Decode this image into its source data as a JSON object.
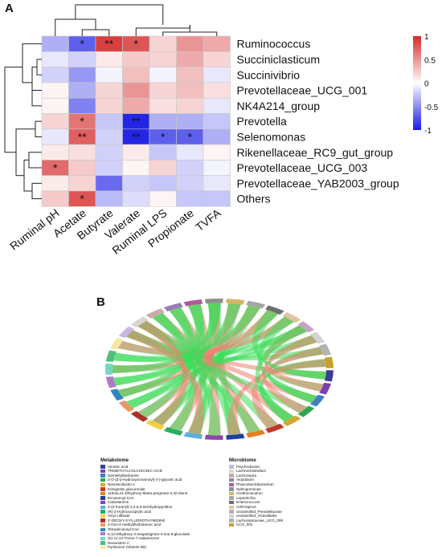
{
  "panels": {
    "a_label": "A",
    "b_label": "B"
  },
  "chart_data": [
    {
      "type": "heatmap",
      "columns": [
        "Ruminal pH",
        "Acetate",
        "Butyrate",
        "Valerate",
        "Ruminal LPS",
        "Propionate",
        "TVFA"
      ],
      "column_order_displayed": [
        "Ruminal pH",
        "Acetate",
        "Butyrate",
        "Valerate",
        "Ruminal LPS",
        "Propionate",
        "TVFA"
      ],
      "rows": [
        "Ruminococcus",
        "Succiniclasticum",
        "Succinivibrio",
        "Prevotellaceae_UCG_001",
        "NK4A214_group",
        "Prevotella",
        "Selenomonas",
        "Rikenellaceae_RC9_gut_group",
        "Prevotellaceae_UCG_003",
        "Prevotellaceae_YAB2003_group",
        "Others"
      ],
      "values": [
        [
          -0.35,
          -0.7,
          0.9,
          0.8,
          0.2,
          0.5,
          0.4
        ],
        [
          -0.1,
          -0.2,
          0.1,
          0.25,
          0.2,
          0.4,
          0.2
        ],
        [
          -0.2,
          -0.45,
          -0.05,
          0.3,
          -0.05,
          0.3,
          -0.1
        ],
        [
          0.05,
          -0.35,
          0.2,
          0.5,
          0.2,
          0.3,
          0.15
        ],
        [
          0.05,
          -0.55,
          0.2,
          0.4,
          0.15,
          0.2,
          -0.1
        ],
        [
          0.2,
          0.65,
          -0.25,
          -0.95,
          -0.35,
          -0.35,
          -0.25
        ],
        [
          -0.1,
          0.75,
          -0.2,
          -0.95,
          -0.7,
          -0.7,
          -0.35
        ],
        [
          0.1,
          0.15,
          -0.2,
          0.1,
          -0.25,
          -0.1,
          0.05
        ],
        [
          0.7,
          0.25,
          -0.2,
          0.05,
          0.2,
          -0.2,
          -0.05
        ],
        [
          0.1,
          0.2,
          -0.65,
          -0.2,
          -0.25,
          -0.2,
          -0.1
        ],
        [
          0.25,
          0.8,
          -0.3,
          -0.15,
          0.05,
          -0.25,
          -0.25
        ]
      ],
      "significance": [
        [
          "",
          "*",
          "**",
          "*",
          "",
          "",
          ""
        ],
        [
          "",
          "",
          "",
          "",
          "",
          "",
          ""
        ],
        [
          "",
          "",
          "",
          "",
          "",
          "",
          ""
        ],
        [
          "",
          "",
          "",
          "",
          "",
          "",
          ""
        ],
        [
          "",
          "",
          "",
          "",
          "",
          "",
          ""
        ],
        [
          "",
          "*",
          "",
          "**",
          "",
          "",
          ""
        ],
        [
          "",
          "**",
          "",
          "**",
          "*",
          "*",
          ""
        ],
        [
          "",
          "",
          "",
          "",
          "",
          "",
          ""
        ],
        [
          "*",
          "",
          "",
          "",
          "",
          "",
          ""
        ],
        [
          "",
          "",
          "",
          "",
          "",
          "",
          ""
        ],
        [
          "",
          "*",
          "",
          "",
          "",
          "",
          ""
        ]
      ],
      "scale": {
        "min": -1,
        "max": 1,
        "ticks": [
          "1",
          "0.5",
          "0",
          "-0.5",
          "-1"
        ],
        "colors": {
          "neg": "#1a1ae6",
          "mid": "#ffffff",
          "pos": "#d52a2a"
        }
      }
    },
    {
      "type": "chord",
      "legend_metabolome_title": "Metabolome",
      "legend_microbiome_title": "Microbiome",
      "metabolome": [
        {
          "name": "Veratric acid",
          "color": "#3d3d8f"
        },
        {
          "name": "TRIMETHYLCOLCHICINIC ACID",
          "color": "#7a3fb0"
        },
        {
          "name": "Demethylberberine",
          "color": "#3f7fbf"
        },
        {
          "name": "2-O-(Z-p-Hydroxycinnamoyl)-(+)-glycaric acid",
          "color": "#2fa84f"
        },
        {
          "name": "Neoniscidactin A",
          "color": "#d4a72c"
        },
        {
          "name": "Ketogestin glucuronide",
          "color": "#c0392b"
        },
        {
          "name": "11beta,21-Dihydroxy-5beta-pregnane-3,20-dione",
          "color": "#e67e22"
        },
        {
          "name": "Eicosanoyl-CoA",
          "color": "#1f3f9f"
        },
        {
          "name": "Carbetamine",
          "color": "#8e44ad"
        },
        {
          "name": "2-(2-Furanyl)-3,4,5,6-tetrahydropyridine",
          "color": "#5dade2"
        },
        {
          "name": "(R)-2-Hydroxycaprylic acid",
          "color": "#27ae60"
        },
        {
          "name": "Vinyl caffeate",
          "color": "#f4d03f"
        },
        {
          "name": "2'-DEOXY-3'-FLUOROTHYMIDINE",
          "color": "#a93226"
        },
        {
          "name": "2-Oxo-4-methylthiobutanoic acid",
          "color": "#e59866"
        },
        {
          "name": "Tetradecanoyl-CoA",
          "color": "#2e86c1"
        },
        {
          "name": "5,13-Dihydroxy-4-megastigmen-3-one 9-glucoside",
          "color": "#af7ac5"
        },
        {
          "name": "(S)-11,13-Trione-7-catamenone",
          "color": "#76d7c4"
        },
        {
          "name": "Neoandron C",
          "color": "#52be80"
        },
        {
          "name": "Pyridoxine (Vitamin B6)",
          "color": "#f9e79f"
        }
      ],
      "microbiome": [
        {
          "name": "Psychrobacter",
          "color": "#c8b6e2"
        },
        {
          "name": "Lachnoclostridium",
          "color": "#d6d6d6"
        },
        {
          "name": "Lachnospira",
          "color": "#c9a9a6"
        },
        {
          "name": "Atopobium",
          "color": "#9b7bb8"
        },
        {
          "name": "Phascolarctobacterium",
          "color": "#b05a9a"
        },
        {
          "name": "Sphingomonas",
          "color": "#8f8f8f"
        },
        {
          "name": "Acetitomaculum",
          "color": "#d8b365"
        },
        {
          "name": "Leptotrichia",
          "color": "#a6a6a6"
        },
        {
          "name": "Enterococcum",
          "color": "#6f6f6f"
        },
        {
          "name": "Arthrospirus",
          "color": "#e0c3a0"
        },
        {
          "name": "unclassified_Prevotellaceae",
          "color": "#c7a5c2"
        },
        {
          "name": "unclassified_Victivallales",
          "color": "#d2d2d2"
        },
        {
          "name": "Lachnospiraceae_UCG_008",
          "color": "#b3b3b3"
        },
        {
          "name": "UCG_001",
          "color": "#c8a028"
        }
      ],
      "link_colors": {
        "positive": "#f08070",
        "negative": "#3ddc5a"
      }
    }
  ]
}
